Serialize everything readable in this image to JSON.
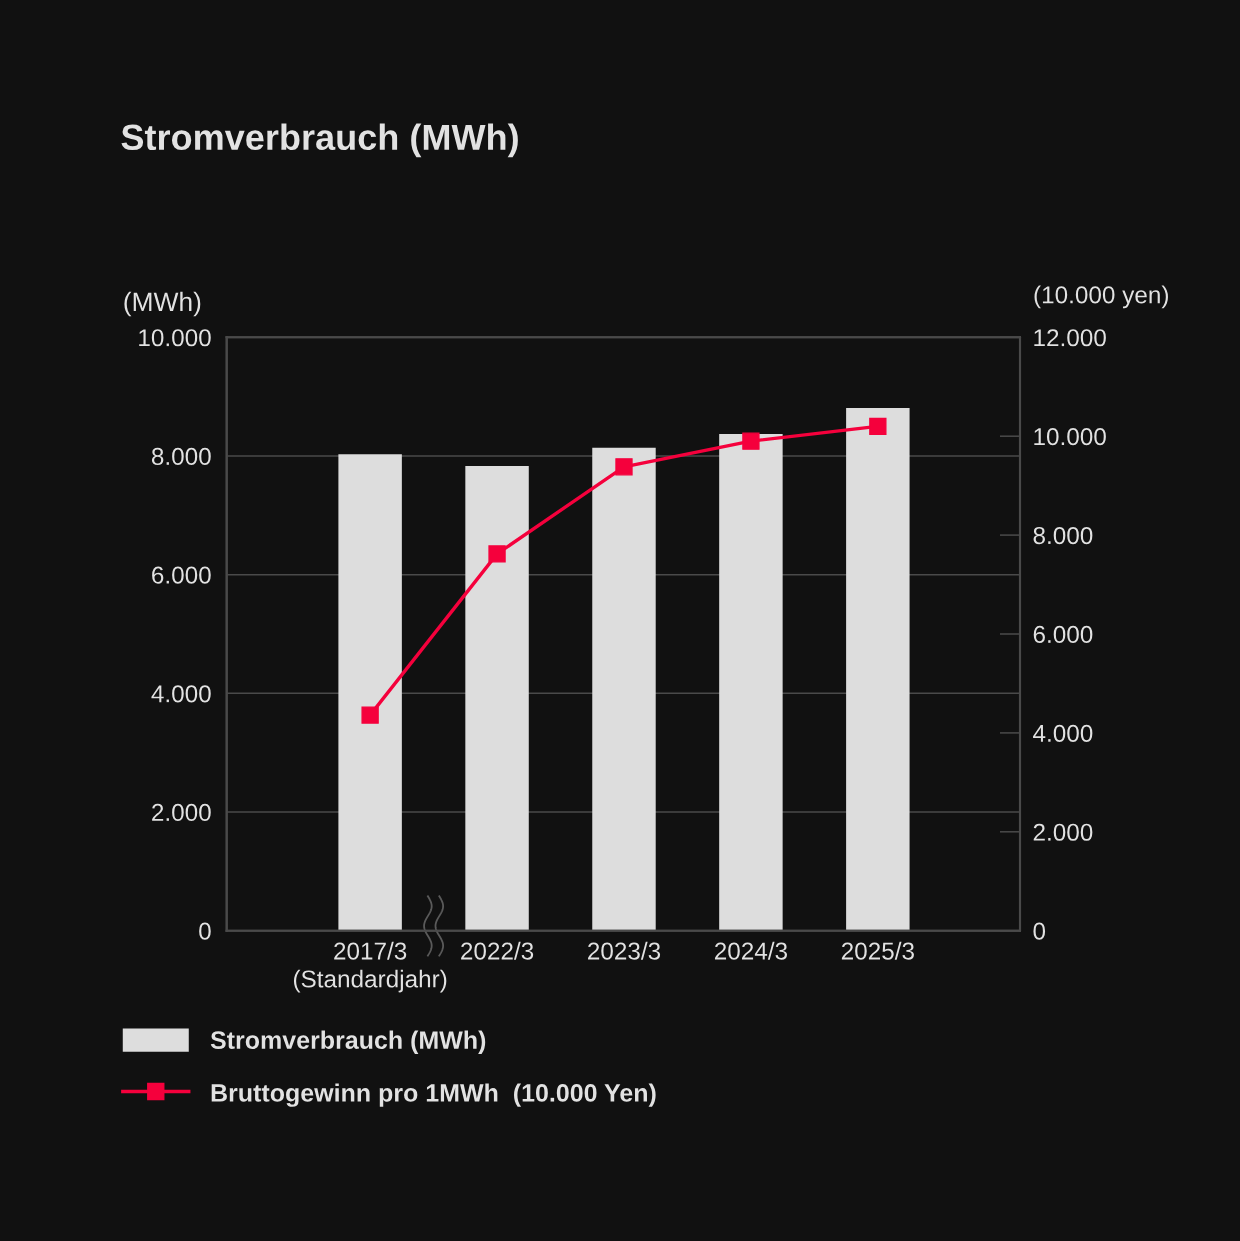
{
  "chart_data": {
    "type": "bar",
    "title": "Stromverbrauch (MWh)",
    "ylabel": "(MWh)",
    "y2label": "(10.000 yen)",
    "categories": [
      "2017/3\n(Standardjahr)",
      "2022/3",
      "2023/3",
      "2024/3",
      "2025/3"
    ],
    "series": [
      {
        "name": "Stromverbrauch (MWh)",
        "color": "#dddddd",
        "values": [
          8030,
          7830,
          8140,
          8370,
          8810
        ]
      },
      {
        "name": "Bruttogewinn pro 1MWh  (10.000 Yen)",
        "type": "line",
        "axis": "y2",
        "color": "#f5003c",
        "values": [
          4360,
          7620,
          9380,
          9900,
          10200
        ]
      }
    ],
    "ylim": [
      0,
      10000
    ],
    "yticks": [
      0,
      {
        "value": 2000,
        "label": "2.000"
      },
      {
        "value": 4000,
        "label": "4.000"
      },
      {
        "value": 6000,
        "label": "6.000"
      },
      {
        "value": 8000,
        "label": "8.000"
      },
      {
        "value": 10000,
        "label": "10.000"
      }
    ],
    "y2lim": [
      0,
      12000
    ],
    "y2ticks": [
      0,
      {
        "value": 2000,
        "label": "2.000"
      },
      {
        "value": 4000,
        "label": "4.000"
      },
      {
        "value": 6000,
        "label": "6.000"
      },
      {
        "value": 8000,
        "label": "8.000"
      },
      {
        "value": 10000,
        "label": "10.000"
      },
      {
        "value": 12000,
        "label": "12.000"
      }
    ],
    "grid": "y",
    "legend": "bottom",
    "marker": "square",
    "line_style": "solid"
  }
}
